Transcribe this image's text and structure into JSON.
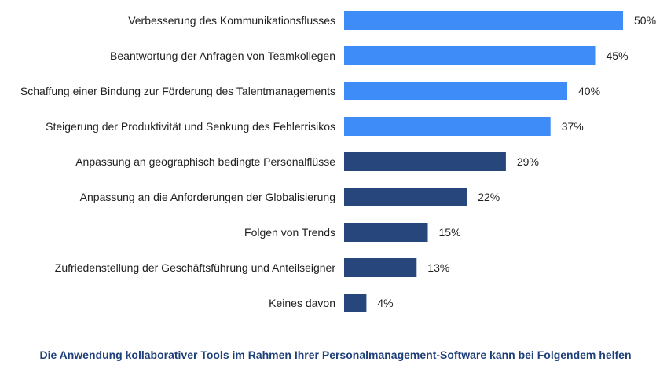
{
  "chart_data": {
    "type": "bar",
    "orientation": "horizontal",
    "categories": [
      "Verbesserung des Kommunikationsflusses",
      "Beantwortung der Anfragen von Teamkollegen",
      "Schaffung einer Bindung zur Förderung des Talentmanagements",
      "Steigerung der Produktivität und Senkung des Fehlerrisikos",
      "Anpassung an geographisch bedingte Personalflüsse",
      "Anpassung an die Anforderungen der Globalisierung",
      "Folgen von Trends",
      "Zufriedenstellung der Geschäftsführung und Anteilseigner",
      "Keines davon"
    ],
    "values": [
      50,
      45,
      40,
      37,
      29,
      22,
      15,
      13,
      4
    ],
    "value_labels": [
      "50%",
      "45%",
      "40%",
      "37%",
      "29%",
      "22%",
      "15%",
      "13%",
      "4%"
    ],
    "bar_colors": [
      "#3d8cf8",
      "#3d8cf8",
      "#3d8cf8",
      "#3d8cf8",
      "#26467c",
      "#26467c",
      "#26467c",
      "#26467c",
      "#26467c"
    ],
    "xlim": [
      0,
      50
    ],
    "grid": false,
    "title": "Die Anwendung kollaborativer Tools im Rahmen Ihrer Personalmanagement-Software kann bei Folgendem helfen"
  }
}
